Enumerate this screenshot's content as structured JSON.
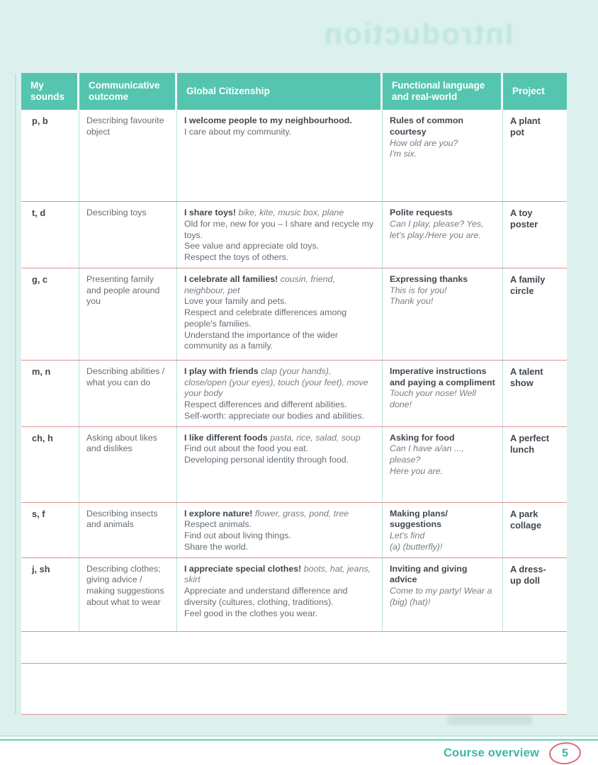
{
  "page": {
    "ghost_header": "Introduction",
    "footer_label": "Course overview",
    "page_number": "5"
  },
  "colors": {
    "header_bg": "#55c5b0",
    "page_bg": "#dcf1ed",
    "row_line": "#dd9292",
    "col_line": "#b4e4da",
    "text_dark": "#40484f",
    "text_gray": "#666d74",
    "accent_teal": "#3bb8a6",
    "badge_pink": "#e4677d",
    "ghost_teal": "#9fdcd2",
    "rule_light": "#bfe6db",
    "rule_dark": "#98d6c7"
  },
  "table": {
    "headers": [
      "My sounds",
      "Communicative outcome",
      "Global Citizenship",
      "Functional language and real-world",
      "Project"
    ],
    "rows": [
      {
        "sounds": "p, b",
        "outcome": "Describing favourite object",
        "citizenship": {
          "bold": "I welcome people to my neighbourhood.",
          "italic": "",
          "lines": [
            "I care about my community."
          ]
        },
        "functional": {
          "bold": "Rules of common courtesy",
          "italic_lines": [
            "How old are you?",
            "I'm six."
          ]
        },
        "project": "A plant pot"
      },
      {
        "sounds": "t, d",
        "outcome": "Describing toys",
        "citizenship": {
          "bold": "I share toys!",
          "italic": "bike, kite, music box, plane",
          "lines": [
            "Old for me, new for you – I share and recycle my toys.",
            "See value and appreciate old toys.",
            "Respect the toys of others."
          ]
        },
        "functional": {
          "bold": "Polite requests",
          "italic_lines": [
            "Can I play, please? Yes, let's play./Here you are."
          ]
        },
        "project": "A toy poster"
      },
      {
        "sounds": "g, c",
        "outcome": "Presenting family and people around you",
        "citizenship": {
          "bold": "I celebrate all families!",
          "italic": "cousin, friend, neighbour, pet",
          "lines": [
            "Love your family and pets.",
            "Respect and celebrate differences among people's families.",
            "Understand the importance of the wider community as a family."
          ]
        },
        "functional": {
          "bold": "Expressing thanks",
          "italic_lines": [
            "This is for you!",
            "Thank you!"
          ]
        },
        "project": "A family circle"
      },
      {
        "sounds": "m, n",
        "outcome": "Describing abilities / what you can do",
        "citizenship": {
          "bold": "I play with friends",
          "italic": "clap (your hands), close/open (your eyes), touch (your feet), move your body",
          "lines": [
            "Respect differences and different abilities.",
            "Self-worth: appreciate our bodies and abilities."
          ]
        },
        "functional": {
          "bold": "Imperative instructions and paying a compliment",
          "italic_lines": [
            "Touch your nose! Well done!"
          ]
        },
        "project": "A talent show"
      },
      {
        "sounds": "ch, h",
        "outcome": "Asking about likes and dislikes",
        "citizenship": {
          "bold": "I like different foods",
          "italic": "pasta, rice, salad, soup",
          "lines": [
            "Find out about the food you eat.",
            "Developing personal identity through food."
          ]
        },
        "functional": {
          "bold": "Asking for food",
          "italic_lines": [
            "Can I have a/an ..., please?",
            "Here you are."
          ]
        },
        "project": "A perfect lunch"
      },
      {
        "sounds": "s, f",
        "outcome": "Describing insects and animals",
        "citizenship": {
          "bold": "I explore nature!",
          "italic": "flower, grass, pond, tree",
          "lines": [
            "Respect animals.",
            "Find out about living things.",
            "Share the world."
          ]
        },
        "functional": {
          "bold": "Making plans/ suggestions",
          "italic_lines": [
            "Let's find",
            "(a) (butterfly)!"
          ]
        },
        "project": "A park collage"
      },
      {
        "sounds": "j, sh",
        "outcome": "Describing clothes; giving advice / making suggestions about what to wear",
        "citizenship": {
          "bold": "I appreciate special clothes!",
          "italic": "boots, hat, jeans, skirt",
          "lines": [
            "Appreciate and understand difference and diversity (cultures, clothing, traditions).",
            "Feel good in the clothes you wear."
          ]
        },
        "functional": {
          "bold": "Inviting and giving advice",
          "italic_lines": [
            "Come to my party! Wear a (big) (hat)!"
          ]
        },
        "project": "A dress-up doll"
      }
    ]
  }
}
